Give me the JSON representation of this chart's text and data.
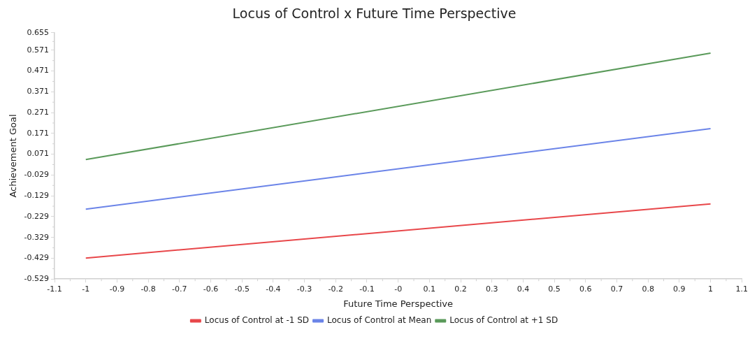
{
  "chart_data": {
    "type": "line",
    "title": "Locus of Control x Future Time Perspective",
    "xlabel": "Future Time Perspective",
    "ylabel": "Achievement Goal",
    "x": [
      -1,
      1
    ],
    "series": [
      {
        "name": "Locus of Control at -1 SD",
        "color": "#e8474a",
        "values": [
          -0.428,
          -0.168
        ]
      },
      {
        "name": "Locus of Control at Mean",
        "color": "#6b84e8",
        "values": [
          -0.193,
          0.194
        ]
      },
      {
        "name": "Locus of Control at +1 SD",
        "color": "#5a9a5a",
        "values": [
          0.045,
          0.557
        ]
      }
    ],
    "xlim": [
      -1.1,
      1.1
    ],
    "xticks": [
      -1.1,
      -1,
      -0.9,
      -0.8,
      -0.7,
      -0.6,
      -0.5,
      -0.4,
      -0.3,
      -0.2,
      -0.1,
      {
        "value": 0,
        "label": "-0"
      },
      0.1,
      0.2,
      0.3,
      0.4,
      0.5,
      0.6,
      0.7,
      0.8,
      0.9,
      1,
      1.1
    ],
    "ylim": [
      -0.529,
      0.655
    ],
    "yticks": [
      -0.529,
      -0.429,
      -0.329,
      -0.229,
      -0.129,
      -0.029,
      0.071,
      0.171,
      0.271,
      0.371,
      0.471,
      0.571,
      0.655
    ],
    "grid": false,
    "legend": "bottom",
    "marker": "none",
    "line_style": "solid"
  }
}
